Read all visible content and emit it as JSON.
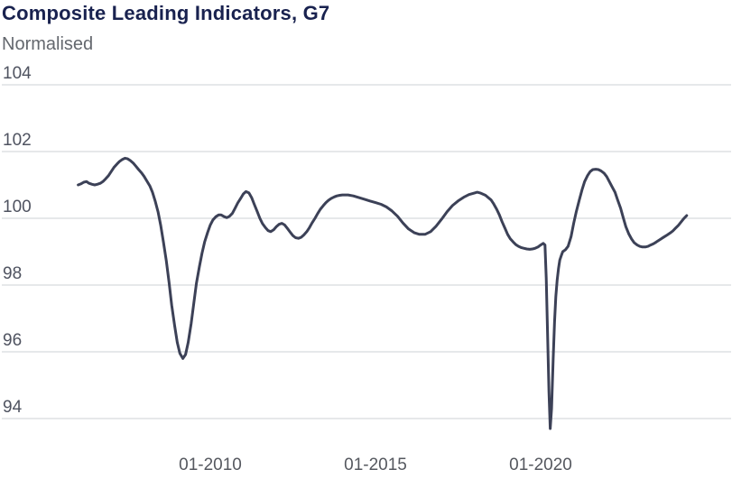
{
  "header": {
    "title": "Composite Leading Indicators, G7",
    "subtitle": "Normalised"
  },
  "chart_data": {
    "type": "line",
    "title": "Composite Leading Indicators, G7",
    "subtitle": "Normalised",
    "ylabel": "Normalised",
    "xlabel": "",
    "x_unit": "decimal_year",
    "xlim": [
      2003.7,
      2025.8
    ],
    "ylim": [
      93.2,
      104.7
    ],
    "y_ticks": [
      94,
      96,
      98,
      100,
      102,
      104
    ],
    "x_ticks": [
      {
        "label": "01-2010",
        "year": 2010
      },
      {
        "label": "01-2015",
        "year": 2015
      },
      {
        "label": "01-2020",
        "year": 2020
      }
    ],
    "grid": "horizontal",
    "legend": "none",
    "style": {
      "line_color": "#3c4157",
      "line_width": 3,
      "grid_color": "#ccd0d6",
      "title_color": "#19224f",
      "subtitle_color": "#64686e",
      "tick_color": "#53575f",
      "background": "#ffffff"
    },
    "series": [
      {
        "name": "Composite Leading Indicator, G7",
        "points": [
          [
            2006.0,
            101.0
          ],
          [
            2006.08,
            101.03
          ],
          [
            2006.17,
            101.08
          ],
          [
            2006.25,
            101.1
          ],
          [
            2006.33,
            101.05
          ],
          [
            2006.42,
            101.02
          ],
          [
            2006.5,
            101.0
          ],
          [
            2006.58,
            101.02
          ],
          [
            2006.67,
            101.05
          ],
          [
            2006.75,
            101.1
          ],
          [
            2006.83,
            101.18
          ],
          [
            2006.92,
            101.28
          ],
          [
            2007.0,
            101.4
          ],
          [
            2007.08,
            101.52
          ],
          [
            2007.17,
            101.62
          ],
          [
            2007.25,
            101.7
          ],
          [
            2007.33,
            101.76
          ],
          [
            2007.42,
            101.8
          ],
          [
            2007.5,
            101.78
          ],
          [
            2007.58,
            101.73
          ],
          [
            2007.67,
            101.65
          ],
          [
            2007.75,
            101.56
          ],
          [
            2007.83,
            101.46
          ],
          [
            2007.92,
            101.36
          ],
          [
            2008.0,
            101.25
          ],
          [
            2008.08,
            101.12
          ],
          [
            2008.17,
            100.97
          ],
          [
            2008.25,
            100.78
          ],
          [
            2008.33,
            100.52
          ],
          [
            2008.42,
            100.18
          ],
          [
            2008.5,
            99.78
          ],
          [
            2008.58,
            99.3
          ],
          [
            2008.67,
            98.72
          ],
          [
            2008.75,
            98.08
          ],
          [
            2008.83,
            97.4
          ],
          [
            2008.92,
            96.78
          ],
          [
            2009.0,
            96.28
          ],
          [
            2009.08,
            95.95
          ],
          [
            2009.17,
            95.8
          ],
          [
            2009.25,
            95.92
          ],
          [
            2009.33,
            96.28
          ],
          [
            2009.42,
            96.85
          ],
          [
            2009.5,
            97.45
          ],
          [
            2009.58,
            98.05
          ],
          [
            2009.67,
            98.55
          ],
          [
            2009.75,
            98.95
          ],
          [
            2009.83,
            99.3
          ],
          [
            2009.92,
            99.58
          ],
          [
            2010.0,
            99.8
          ],
          [
            2010.08,
            99.95
          ],
          [
            2010.17,
            100.05
          ],
          [
            2010.25,
            100.1
          ],
          [
            2010.33,
            100.1
          ],
          [
            2010.42,
            100.05
          ],
          [
            2010.5,
            100.02
          ],
          [
            2010.58,
            100.06
          ],
          [
            2010.67,
            100.15
          ],
          [
            2010.75,
            100.3
          ],
          [
            2010.83,
            100.46
          ],
          [
            2010.92,
            100.6
          ],
          [
            2011.0,
            100.73
          ],
          [
            2011.08,
            100.8
          ],
          [
            2011.17,
            100.76
          ],
          [
            2011.25,
            100.62
          ],
          [
            2011.33,
            100.42
          ],
          [
            2011.42,
            100.2
          ],
          [
            2011.5,
            100.0
          ],
          [
            2011.58,
            99.84
          ],
          [
            2011.67,
            99.72
          ],
          [
            2011.75,
            99.63
          ],
          [
            2011.83,
            99.6
          ],
          [
            2011.92,
            99.66
          ],
          [
            2012.0,
            99.75
          ],
          [
            2012.08,
            99.82
          ],
          [
            2012.17,
            99.85
          ],
          [
            2012.25,
            99.8
          ],
          [
            2012.33,
            99.7
          ],
          [
            2012.42,
            99.58
          ],
          [
            2012.5,
            99.48
          ],
          [
            2012.58,
            99.42
          ],
          [
            2012.67,
            99.4
          ],
          [
            2012.75,
            99.43
          ],
          [
            2012.83,
            99.5
          ],
          [
            2012.92,
            99.6
          ],
          [
            2013.0,
            99.72
          ],
          [
            2013.08,
            99.86
          ],
          [
            2013.17,
            100.0
          ],
          [
            2013.25,
            100.14
          ],
          [
            2013.33,
            100.27
          ],
          [
            2013.42,
            100.38
          ],
          [
            2013.5,
            100.47
          ],
          [
            2013.58,
            100.54
          ],
          [
            2013.67,
            100.6
          ],
          [
            2013.75,
            100.64
          ],
          [
            2013.83,
            100.67
          ],
          [
            2013.92,
            100.69
          ],
          [
            2014.0,
            100.7
          ],
          [
            2014.17,
            100.7
          ],
          [
            2014.33,
            100.67
          ],
          [
            2014.5,
            100.62
          ],
          [
            2014.67,
            100.57
          ],
          [
            2014.83,
            100.52
          ],
          [
            2015.0,
            100.47
          ],
          [
            2015.17,
            100.42
          ],
          [
            2015.33,
            100.34
          ],
          [
            2015.5,
            100.22
          ],
          [
            2015.67,
            100.06
          ],
          [
            2015.83,
            99.86
          ],
          [
            2016.0,
            99.68
          ],
          [
            2016.17,
            99.57
          ],
          [
            2016.33,
            99.52
          ],
          [
            2016.5,
            99.52
          ],
          [
            2016.67,
            99.6
          ],
          [
            2016.83,
            99.76
          ],
          [
            2017.0,
            99.97
          ],
          [
            2017.17,
            100.2
          ],
          [
            2017.33,
            100.38
          ],
          [
            2017.5,
            100.52
          ],
          [
            2017.67,
            100.63
          ],
          [
            2017.83,
            100.71
          ],
          [
            2018.0,
            100.76
          ],
          [
            2018.08,
            100.78
          ],
          [
            2018.17,
            100.76
          ],
          [
            2018.33,
            100.69
          ],
          [
            2018.5,
            100.55
          ],
          [
            2018.58,
            100.43
          ],
          [
            2018.67,
            100.27
          ],
          [
            2018.75,
            100.1
          ],
          [
            2018.83,
            99.9
          ],
          [
            2018.92,
            99.7
          ],
          [
            2019.0,
            99.52
          ],
          [
            2019.08,
            99.39
          ],
          [
            2019.17,
            99.29
          ],
          [
            2019.25,
            99.21
          ],
          [
            2019.33,
            99.16
          ],
          [
            2019.42,
            99.12
          ],
          [
            2019.5,
            99.1
          ],
          [
            2019.58,
            99.08
          ],
          [
            2019.67,
            99.07
          ],
          [
            2019.75,
            99.08
          ],
          [
            2019.83,
            99.1
          ],
          [
            2019.92,
            99.14
          ],
          [
            2020.0,
            99.2
          ],
          [
            2020.08,
            99.25
          ],
          [
            2020.13,
            99.2
          ],
          [
            2020.17,
            98.2
          ],
          [
            2020.21,
            96.5
          ],
          [
            2020.25,
            94.8
          ],
          [
            2020.29,
            93.7
          ],
          [
            2020.33,
            94.3
          ],
          [
            2020.38,
            95.8
          ],
          [
            2020.42,
            96.9
          ],
          [
            2020.46,
            97.65
          ],
          [
            2020.5,
            98.15
          ],
          [
            2020.54,
            98.5
          ],
          [
            2020.58,
            98.75
          ],
          [
            2020.63,
            98.9
          ],
          [
            2020.67,
            99.0
          ],
          [
            2020.75,
            99.06
          ],
          [
            2020.83,
            99.16
          ],
          [
            2020.92,
            99.45
          ],
          [
            2021.0,
            99.85
          ],
          [
            2021.08,
            100.2
          ],
          [
            2021.17,
            100.55
          ],
          [
            2021.25,
            100.85
          ],
          [
            2021.33,
            101.1
          ],
          [
            2021.42,
            101.28
          ],
          [
            2021.5,
            101.4
          ],
          [
            2021.58,
            101.46
          ],
          [
            2021.67,
            101.47
          ],
          [
            2021.75,
            101.46
          ],
          [
            2021.83,
            101.42
          ],
          [
            2021.92,
            101.35
          ],
          [
            2022.0,
            101.25
          ],
          [
            2022.08,
            101.1
          ],
          [
            2022.17,
            100.93
          ],
          [
            2022.25,
            100.78
          ],
          [
            2022.33,
            100.55
          ],
          [
            2022.42,
            100.3
          ],
          [
            2022.5,
            100.02
          ],
          [
            2022.58,
            99.75
          ],
          [
            2022.67,
            99.53
          ],
          [
            2022.75,
            99.38
          ],
          [
            2022.83,
            99.27
          ],
          [
            2022.92,
            99.2
          ],
          [
            2023.0,
            99.16
          ],
          [
            2023.08,
            99.14
          ],
          [
            2023.17,
            99.14
          ],
          [
            2023.25,
            99.16
          ],
          [
            2023.33,
            99.2
          ],
          [
            2023.42,
            99.24
          ],
          [
            2023.5,
            99.29
          ],
          [
            2023.58,
            99.34
          ],
          [
            2023.67,
            99.4
          ],
          [
            2023.75,
            99.45
          ],
          [
            2023.83,
            99.5
          ],
          [
            2023.92,
            99.56
          ],
          [
            2024.0,
            99.62
          ],
          [
            2024.08,
            99.7
          ],
          [
            2024.17,
            99.79
          ],
          [
            2024.25,
            99.89
          ],
          [
            2024.33,
            99.99
          ],
          [
            2024.42,
            100.08
          ]
        ]
      }
    ]
  }
}
